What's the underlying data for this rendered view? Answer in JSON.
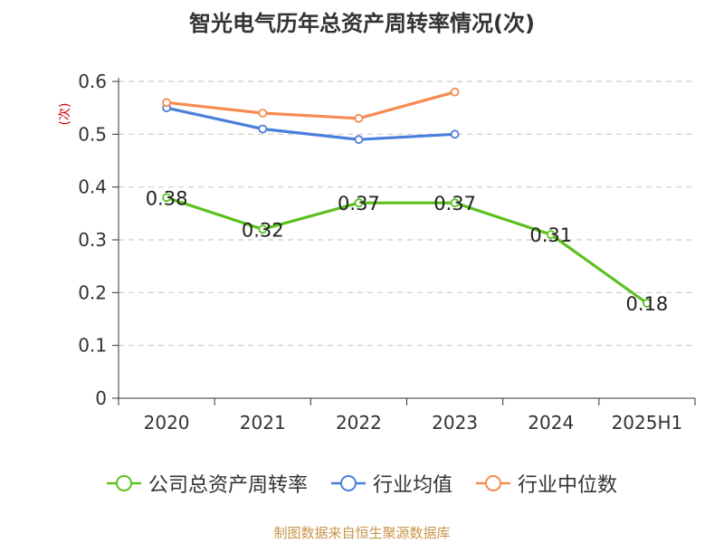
{
  "title": "智光电气历年总资产周转率情况(次)",
  "source": "制图数据来自恒生聚源数据库",
  "chart_data": {
    "type": "line",
    "title": "智光电气历年总资产周转率情况(次)",
    "ylabel": "(次)",
    "xlabel": "",
    "categories": [
      "2020",
      "2021",
      "2022",
      "2023",
      "2024",
      "2025H1"
    ],
    "ylim": [
      0,
      0.6
    ],
    "yticks": [
      0,
      0.1,
      0.2,
      0.3,
      0.4,
      0.5,
      0.6
    ],
    "ytick_labels": [
      "0",
      "0.1",
      "0.2",
      "0.3",
      "0.4",
      "0.5",
      "0.6"
    ],
    "grid": true,
    "legend_position": "bottom",
    "series": [
      {
        "name": "公司总资产周转率",
        "color": "#5cc01e",
        "values": [
          0.38,
          0.32,
          0.37,
          0.37,
          0.31,
          0.18
        ],
        "data_labels": [
          "0.38",
          "0.32",
          "0.37",
          "0.37",
          "0.31",
          "0.18"
        ]
      },
      {
        "name": "行业均值",
        "color": "#4a7fdc",
        "values": [
          0.55,
          0.51,
          0.49,
          0.5,
          null,
          null
        ]
      },
      {
        "name": "行业中位数",
        "color": "#f78b52",
        "values": [
          0.56,
          0.54,
          0.53,
          0.58,
          null,
          null
        ]
      }
    ],
    "label_color": "#cc0000"
  }
}
